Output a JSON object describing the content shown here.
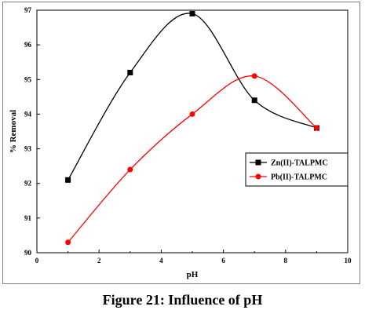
{
  "caption": "Figure 21: Influence of pH",
  "chart_data": {
    "type": "line",
    "xlabel": "pH",
    "ylabel": "% Removal",
    "xlim": [
      0,
      10
    ],
    "ylim": [
      90,
      97
    ],
    "xticks": [
      "0",
      "2",
      "4",
      "6",
      "8",
      "10"
    ],
    "yticks": [
      "90",
      "91",
      "92",
      "93",
      "94",
      "95",
      "96",
      "97"
    ],
    "grid": false,
    "legend_position": "right",
    "x": [
      1,
      3,
      5,
      7,
      9
    ],
    "series": [
      {
        "name": "Zn(II)-TALPMC",
        "color": "#000000",
        "marker": "square",
        "values": [
          92.1,
          95.2,
          96.9,
          94.4,
          93.6
        ]
      },
      {
        "name": "Pb(II)-TALPMC",
        "color": "#ff0000",
        "marker": "circle",
        "values": [
          90.3,
          92.4,
          94.0,
          95.1,
          93.6
        ]
      }
    ]
  }
}
